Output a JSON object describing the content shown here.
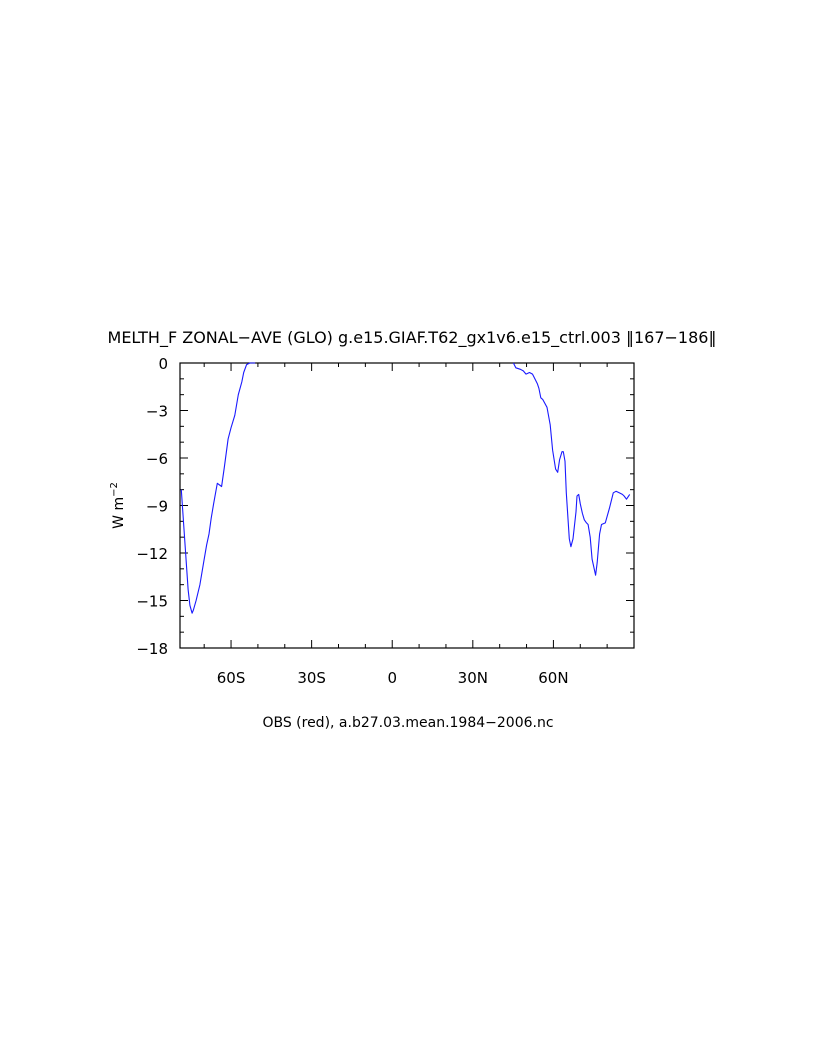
{
  "chart_data": {
    "type": "line",
    "title": "MELTH_F ZONAL−AVE (GLO) g.e15.GIAF.T62_gx1v6.e15_ctrl.003 ‖167−186‖",
    "xlabel": "OBS (red), a.b27.03.mean.1984−2006.nc",
    "ylabel": "W m",
    "ylabel_exponent": "−2",
    "xlim": [
      -79,
      90
    ],
    "ylim": [
      -18,
      0
    ],
    "yticks": [
      0,
      -3,
      -6,
      -9,
      -12,
      -15,
      -18
    ],
    "ytick_labels": [
      "0",
      "−3",
      "−6",
      "−9",
      "−12",
      "−15",
      "−18"
    ],
    "xticks": [
      -60,
      -30,
      0,
      30,
      60
    ],
    "xtick_labels": [
      "60S",
      "30S",
      "0",
      "30N",
      "60N"
    ],
    "grid": false,
    "series": [
      {
        "color": "#1a1aff",
        "x": [
          -78.5,
          -77.5,
          -76.5,
          -76.0,
          -75.3,
          -74.5,
          -74.0,
          -73.0,
          -71.6,
          -70.1,
          -69.1,
          -68.2,
          -67.4,
          -66.5,
          -65.1,
          -63.5,
          -62.5,
          -61.1,
          -60.0,
          -58.6,
          -57.3,
          -56.0,
          -55.3,
          -54.2,
          -53.0,
          -51.0,
          45.1,
          46.0,
          47.7,
          48.8,
          49.8,
          51.1,
          52.2,
          52.8,
          54.0,
          54.6,
          55.3,
          56.0,
          57.6,
          58.8,
          59.7,
          60.8,
          61.6,
          62.3,
          63.2,
          63.7,
          64.3,
          64.8,
          65.9,
          66.5,
          67.3,
          68.4,
          68.8,
          69.4,
          70.0,
          70.8,
          71.5,
          72.3,
          72.9,
          73.7,
          74.4,
          75.7,
          76.3,
          77.2,
          77.9,
          79.3,
          80.8,
          82.3,
          83.3,
          84.5,
          85.7,
          86.3,
          87.2,
          88.4
        ],
        "y": [
          -8.0,
          -10.5,
          -13.0,
          -14.3,
          -15.3,
          -15.8,
          -15.6,
          -15.0,
          -14.0,
          -12.5,
          -11.5,
          -10.8,
          -9.8,
          -8.9,
          -7.6,
          -7.8,
          -6.6,
          -4.8,
          -4.1,
          -3.3,
          -2.0,
          -1.2,
          -0.6,
          -0.1,
          0.0,
          0.0,
          0.0,
          -0.3,
          -0.4,
          -0.5,
          -0.7,
          -0.6,
          -0.7,
          -0.9,
          -1.3,
          -1.6,
          -2.2,
          -2.3,
          -2.8,
          -3.9,
          -5.5,
          -6.7,
          -6.9,
          -6.1,
          -5.6,
          -5.6,
          -6.2,
          -8.2,
          -11.1,
          -11.6,
          -11.1,
          -9.4,
          -8.4,
          -8.3,
          -8.9,
          -9.5,
          -9.9,
          -10.1,
          -10.2,
          -11.0,
          -12.4,
          -13.4,
          -12.6,
          -10.8,
          -10.2,
          -10.1,
          -9.2,
          -8.2,
          -8.1,
          -8.2,
          -8.3,
          -8.4,
          -8.6,
          -8.3
        ]
      }
    ]
  }
}
